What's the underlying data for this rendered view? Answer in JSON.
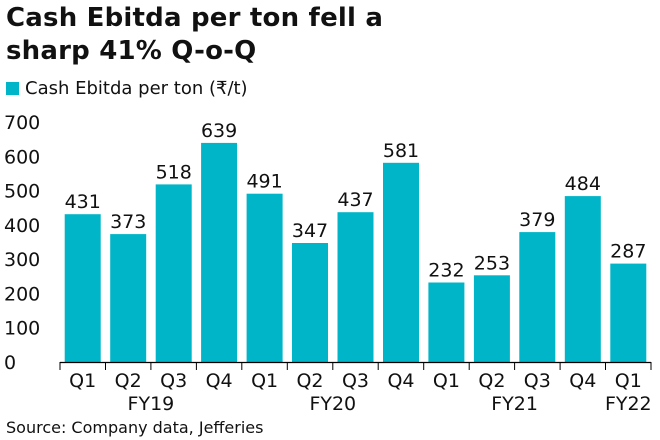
{
  "page": {
    "title_line1": "Cash Ebitda per ton fell a",
    "title_line2": "sharp 41% Q-o-Q",
    "source": "Source: Company data, Jefferies"
  },
  "colors": {
    "bar": "#00b5c8",
    "text": "#111111",
    "axis": "#000000"
  },
  "chart_data": {
    "type": "bar",
    "title": "Cash Ebitda per ton fell a sharp 41% Q-o-Q",
    "legend_position": "top-left",
    "grid": false,
    "xlabel": "",
    "ylabel": "",
    "ylim": [
      0,
      700
    ],
    "yticks": [
      0,
      100,
      200,
      300,
      400,
      500,
      600,
      700
    ],
    "categories": [
      "Q1",
      "Q2",
      "Q3",
      "Q4",
      "Q1",
      "Q2",
      "Q3",
      "Q4",
      "Q1",
      "Q2",
      "Q3",
      "Q4",
      "Q1"
    ],
    "groups": [
      {
        "label": "FY19",
        "start": 0,
        "end": 3
      },
      {
        "label": "FY20",
        "start": 4,
        "end": 7
      },
      {
        "label": "FY21",
        "start": 8,
        "end": 11
      },
      {
        "label": "FY22",
        "start": 12,
        "end": 12
      }
    ],
    "series": [
      {
        "name": "Cash Ebitda per ton (₹/t)",
        "values": [
          431,
          373,
          518,
          639,
          491,
          347,
          437,
          581,
          232,
          253,
          379,
          484,
          287
        ]
      }
    ]
  }
}
